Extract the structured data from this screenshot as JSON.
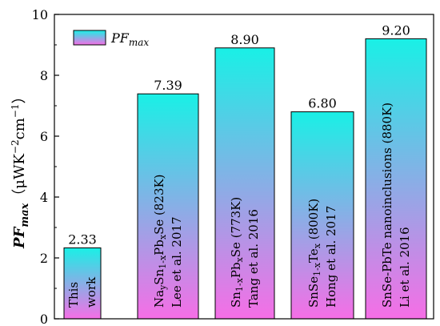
{
  "chart_data": {
    "type": "bar",
    "ylabel": "PF",
    "ylabel_sub": "max",
    "ylabel_unit_prefix": "（μWK",
    "ylabel_unit_sup1": "−2",
    "ylabel_unit_mid": "cm",
    "ylabel_unit_sup2": "−1",
    "ylabel_unit_suffix": "）",
    "ylim": [
      0,
      10
    ],
    "yticks": [
      "0",
      "2",
      "4",
      "6",
      "8",
      "10"
    ],
    "legend": {
      "position": "top-left",
      "label": "PF",
      "label_sub": "max"
    },
    "colors": {
      "bar_top": "#19f0e6",
      "bar_bottom": "#f66ee6",
      "bar_stroke": "#000000"
    },
    "values": [
      2.33,
      7.39,
      8.9,
      6.8,
      9.2
    ],
    "value_labels": [
      "2.33",
      "7.39",
      "8.90",
      "6.80",
      "9.20"
    ],
    "bars": [
      {
        "lines": [
          [
            {
              "t": "This"
            }
          ],
          [
            {
              "t": "work"
            }
          ]
        ]
      },
      {
        "lines": [
          [
            {
              "t": "Na"
            },
            {
              "t": "y",
              "sub": true
            },
            {
              "t": "Sn"
            },
            {
              "t": "1-x",
              "sub": true
            },
            {
              "t": "Pb"
            },
            {
              "t": "x",
              "sub": true
            },
            {
              "t": "Se (823K)"
            }
          ],
          [
            {
              "t": "Lee et al. 2017"
            }
          ]
        ]
      },
      {
        "lines": [
          [
            {
              "t": "Sn"
            },
            {
              "t": "1-x",
              "sub": true
            },
            {
              "t": "Pb"
            },
            {
              "t": "x",
              "sub": true
            },
            {
              "t": "Se (773K)"
            }
          ],
          [
            {
              "t": "Tang et al. 2016"
            }
          ]
        ]
      },
      {
        "lines": [
          [
            {
              "t": "SnSe"
            },
            {
              "t": "1-x",
              "sub": true
            },
            {
              "t": "Te"
            },
            {
              "t": "x",
              "sub": true
            },
            {
              "t": " (800K)"
            }
          ],
          [
            {
              "t": "Hong et al. 2017"
            }
          ]
        ]
      },
      {
        "lines": [
          [
            {
              "t": "SnSe-PbTe nanoinclusions (880K)"
            }
          ],
          [
            {
              "t": "Li et al. 2016"
            }
          ]
        ]
      }
    ]
  }
}
